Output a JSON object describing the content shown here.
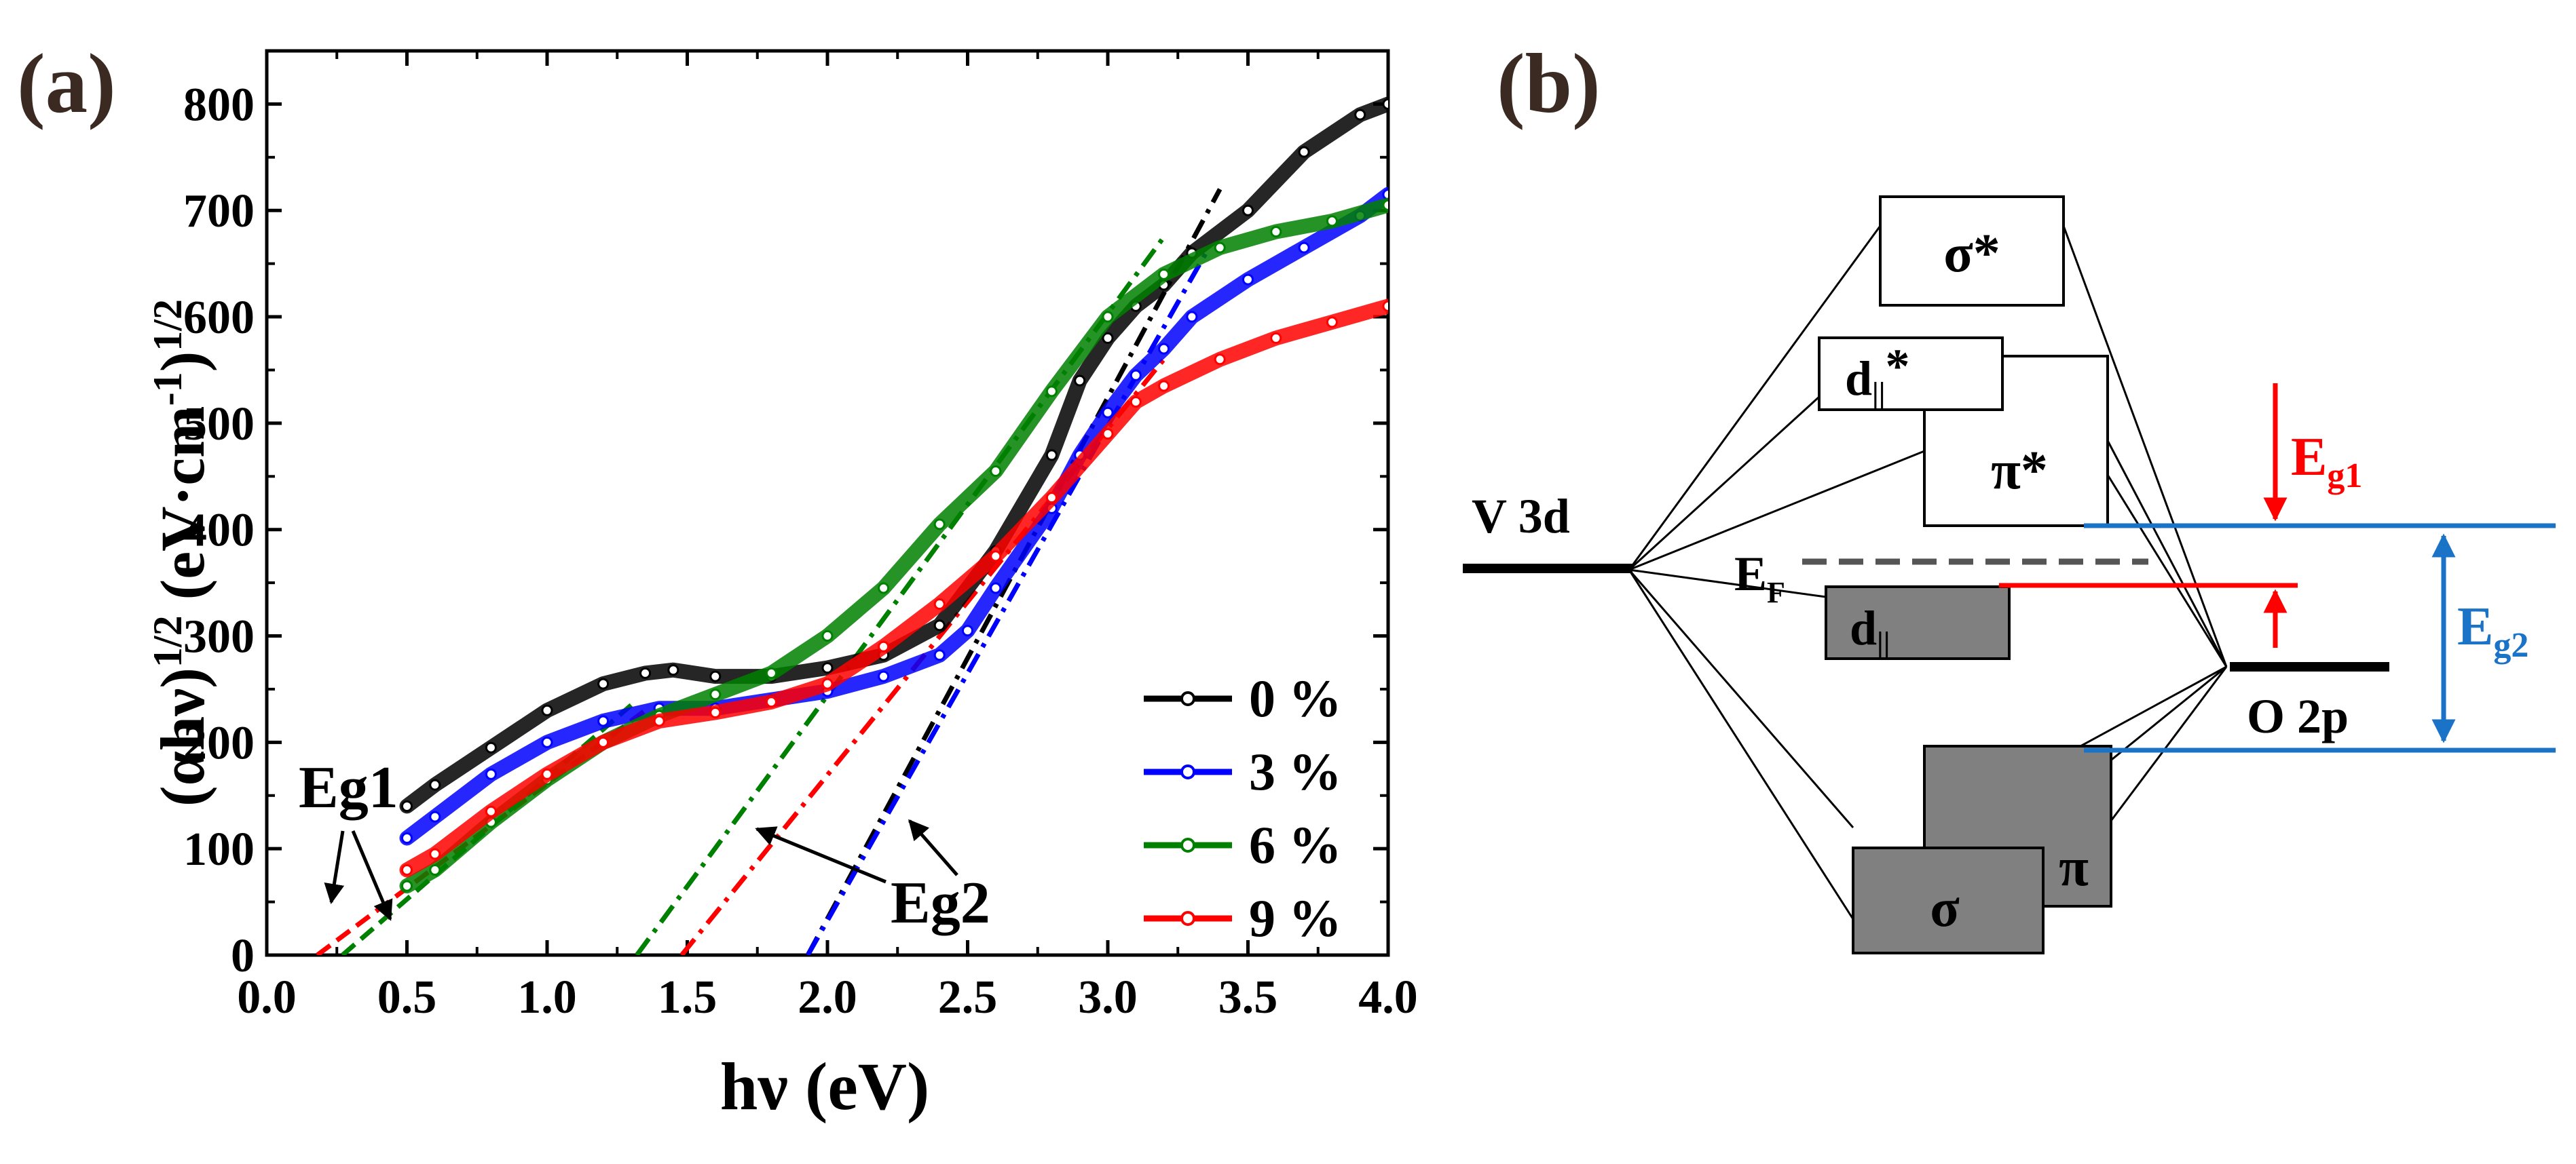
{
  "chart_data": [
    {
      "panel_label": "(a)",
      "type": "scatter",
      "xlabel": "hν (eV)",
      "ylabel": "(αhν)^1/2 (eV·cm^-1)^1/2",
      "xlim": [
        0.0,
        4.0
      ],
      "ylim": [
        0,
        850
      ],
      "x_ticks": [
        "0.0",
        "0.5",
        "1.0",
        "1.5",
        "2.0",
        "2.5",
        "3.0",
        "3.5",
        "4.0"
      ],
      "y_ticks": [
        "0",
        "100",
        "200",
        "300",
        "400",
        "500",
        "600",
        "700",
        "800"
      ],
      "legend_placement": "bottom-right",
      "series": [
        {
          "name": "0 %",
          "color": "#000000",
          "x": [
            0.5,
            0.6,
            0.8,
            1.0,
            1.2,
            1.35,
            1.45,
            1.6,
            1.8,
            2.0,
            2.2,
            2.4,
            2.6,
            2.8,
            2.9,
            3.0,
            3.1,
            3.2,
            3.3,
            3.5,
            3.7,
            3.9,
            4.0
          ],
          "y": [
            140,
            160,
            195,
            230,
            255,
            265,
            268,
            262,
            262,
            270,
            282,
            310,
            380,
            470,
            540,
            580,
            610,
            630,
            660,
            700,
            755,
            790,
            800
          ]
        },
        {
          "name": "3 %",
          "color": "#0000ff",
          "x": [
            0.5,
            0.6,
            0.8,
            1.0,
            1.2,
            1.4,
            1.6,
            1.8,
            2.0,
            2.2,
            2.4,
            2.5,
            2.6,
            2.8,
            2.9,
            3.0,
            3.1,
            3.2,
            3.3,
            3.5,
            3.7,
            3.9,
            4.0
          ],
          "y": [
            110,
            130,
            170,
            200,
            220,
            232,
            232,
            240,
            248,
            262,
            282,
            305,
            345,
            420,
            470,
            510,
            545,
            570,
            600,
            635,
            665,
            695,
            715
          ]
        },
        {
          "name": "6 %",
          "color": "#008000",
          "x": [
            0.5,
            0.6,
            0.8,
            1.0,
            1.2,
            1.4,
            1.6,
            1.8,
            2.0,
            2.2,
            2.4,
            2.6,
            2.8,
            3.0,
            3.2,
            3.4,
            3.6,
            3.8,
            4.0
          ],
          "y": [
            65,
            80,
            125,
            165,
            200,
            225,
            245,
            265,
            300,
            345,
            405,
            455,
            530,
            600,
            640,
            665,
            680,
            690,
            705
          ]
        },
        {
          "name": "9 %",
          "color": "#ff0000",
          "x": [
            0.5,
            0.6,
            0.8,
            1.0,
            1.2,
            1.4,
            1.6,
            1.8,
            2.0,
            2.2,
            2.4,
            2.6,
            2.8,
            3.0,
            3.1,
            3.2,
            3.4,
            3.6,
            3.8,
            4.0
          ],
          "y": [
            80,
            95,
            135,
            170,
            200,
            220,
            228,
            238,
            255,
            290,
            330,
            375,
            430,
            490,
            520,
            535,
            560,
            580,
            595,
            610
          ]
        }
      ],
      "fit_lines": {
        "eg1": [
          {
            "series": "9 %",
            "color": "#ff0000",
            "x": [
              0.18,
              1.35
            ],
            "y": [
              0,
              230
            ]
          },
          {
            "series": "6 %",
            "color": "#008000",
            "x": [
              0.27,
              1.3
            ],
            "y": [
              0,
              235
            ]
          }
        ],
        "eg2": [
          {
            "series": "6 %",
            "color": "#008000",
            "x": [
              1.32,
              3.2
            ],
            "y": [
              0,
              675
            ]
          },
          {
            "series": "9 %",
            "color": "#ff0000",
            "x": [
              1.48,
              3.2
            ],
            "y": [
              0,
              560
            ]
          },
          {
            "series": "0 %",
            "color": "#000000",
            "x": [
              1.93,
              3.4
            ],
            "y": [
              0,
              720
            ]
          },
          {
            "series": "3 %",
            "color": "#0000ff",
            "x": [
              1.93,
              3.35
            ],
            "y": [
              0,
              660
            ]
          }
        ]
      },
      "annotations": {
        "eg1": "Eg1",
        "eg2": "Eg2"
      }
    }
  ],
  "diagram": {
    "panel_label": "(b)",
    "labels": {
      "v3d": "V 3d",
      "o2p": "O 2p",
      "sigma_star": "σ*",
      "d_par_star": "d||*",
      "pi_star": "π*",
      "ef": "EF",
      "d_par": "d||",
      "sigma": "σ",
      "pi": "π",
      "eg1": "Eg1",
      "eg2": "Eg2"
    },
    "colors": {
      "eg1": "#ff0000",
      "eg2": "#1a73c6",
      "filled_box": "#808080",
      "ef_dash": "#555555"
    }
  }
}
